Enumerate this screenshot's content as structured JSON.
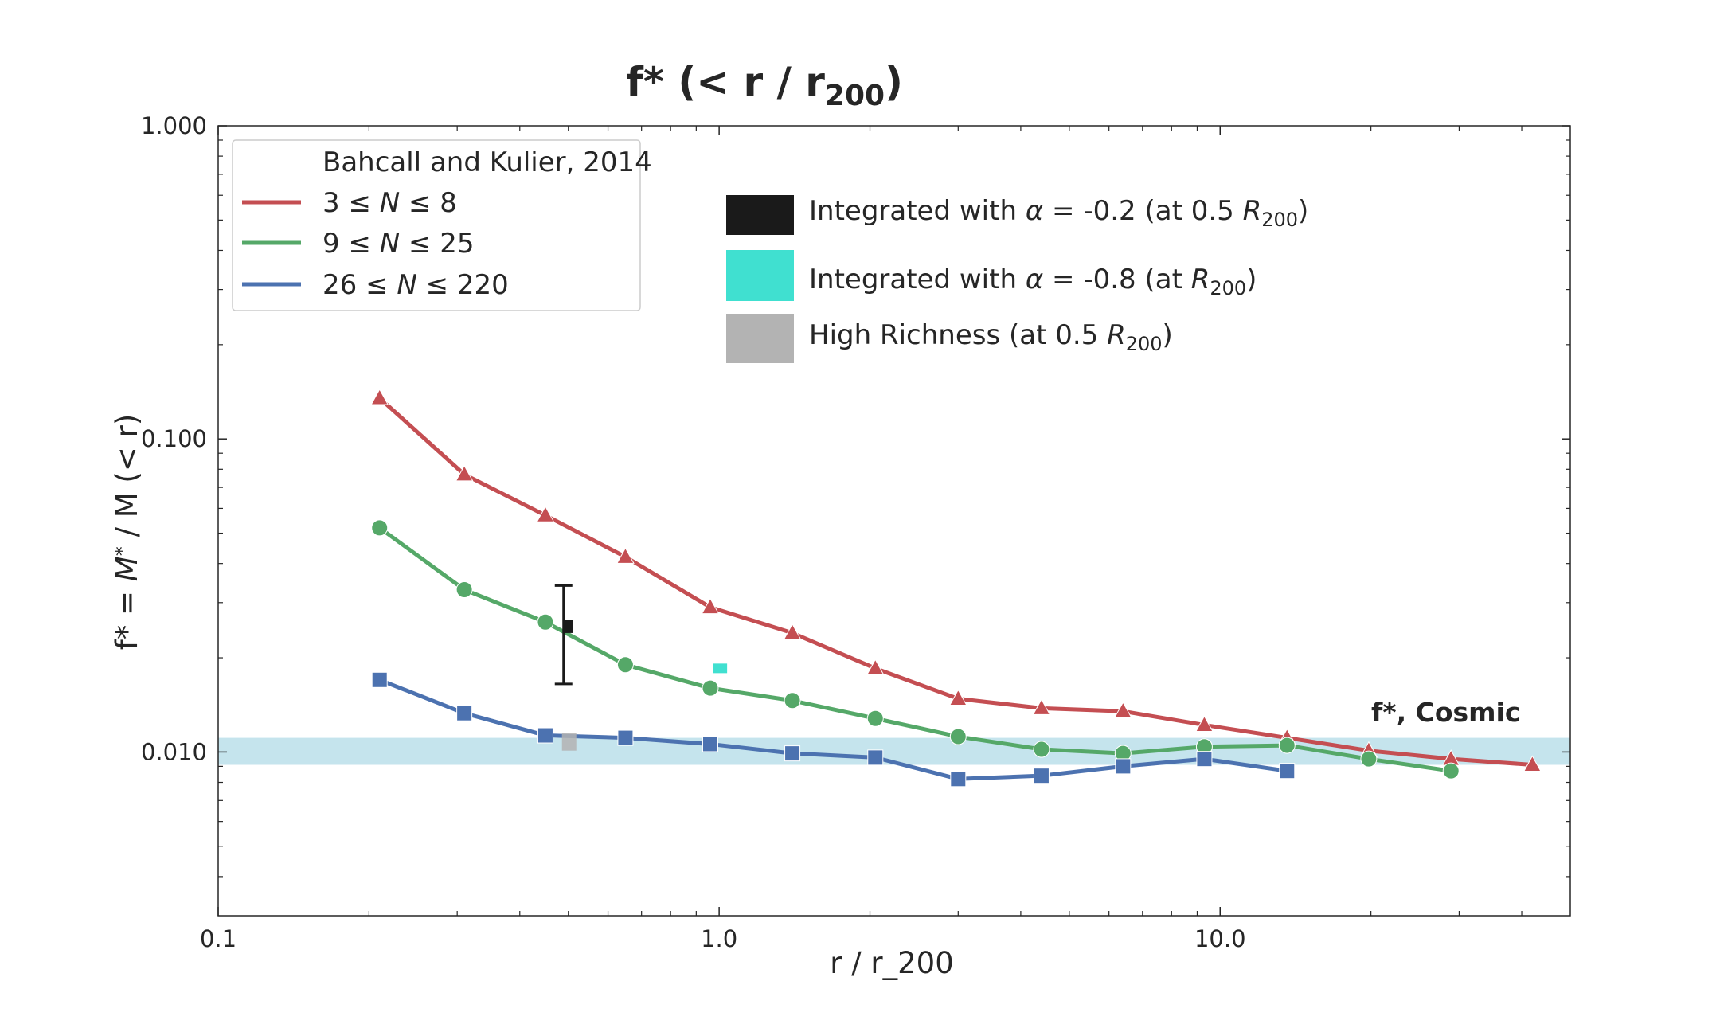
{
  "chart_data": {
    "type": "line",
    "title": "f* (< r / r200)",
    "title_parts": {
      "main": "f*  (< r / r",
      "sub": "200",
      "close": ")"
    },
    "xlabel": "r / r_200",
    "ylabel_parts": {
      "a": "f* = ",
      "b": "M",
      "c": "*",
      "d": " / M (< r)"
    },
    "x_scale": "log",
    "y_scale": "log",
    "xlim": [
      0.1,
      50
    ],
    "ylim": [
      0.003,
      1.0
    ],
    "x_ticks": [
      "0.1",
      "1.0",
      "10.0"
    ],
    "y_ticks": [
      "0.010",
      "0.100",
      "1.000"
    ],
    "grid": false,
    "legend": {
      "title": "Bahcall and Kulier, 2014",
      "placement": "top-left",
      "entries": [
        {
          "pre": "3 ≤ ",
          "var": "N",
          "post": " ≤ 8"
        },
        {
          "pre": "9 ≤ ",
          "var": "N",
          "post": " ≤ 25"
        },
        {
          "pre": "26 ≤ ",
          "var": "N",
          "post": " ≤ 220"
        }
      ]
    },
    "series": [
      {
        "name": "3 ≤ N ≤ 8",
        "color": "#c44e52",
        "marker": "triangle",
        "x": [
          0.21,
          0.31,
          0.45,
          0.65,
          0.96,
          1.4,
          2.05,
          3.0,
          4.4,
          6.4,
          9.3,
          13.6,
          19.8,
          28.9,
          42.0
        ],
        "y": [
          0.135,
          0.077,
          0.057,
          0.042,
          0.029,
          0.024,
          0.0185,
          0.0148,
          0.0138,
          0.0135,
          0.0122,
          0.0111,
          0.0101,
          0.0095,
          0.0091
        ]
      },
      {
        "name": "9 ≤ N ≤ 25",
        "color": "#55a868",
        "marker": "circle",
        "x": [
          0.21,
          0.31,
          0.45,
          0.65,
          0.96,
          1.4,
          2.05,
          3.0,
          4.4,
          6.4,
          9.3,
          13.6,
          19.8,
          28.9
        ],
        "y": [
          0.052,
          0.033,
          0.026,
          0.019,
          0.016,
          0.0146,
          0.0128,
          0.0112,
          0.0102,
          0.0099,
          0.0104,
          0.0105,
          0.0095,
          0.0087
        ]
      },
      {
        "name": "26 ≤ N ≤ 220",
        "color": "#4c72b0",
        "marker": "square",
        "x": [
          0.21,
          0.31,
          0.45,
          0.65,
          0.96,
          1.4,
          2.05,
          3.0,
          4.4,
          6.4,
          9.3,
          13.6
        ],
        "y": [
          0.017,
          0.0133,
          0.0113,
          0.0111,
          0.0106,
          0.0099,
          0.0096,
          0.0082,
          0.0084,
          0.009,
          0.0095,
          0.0087
        ]
      }
    ],
    "points": [
      {
        "label_pre": "Integrated with ",
        "label_var": "α",
        "label_mid": " = -0.2 (at 0.5 ",
        "label_r": "R",
        "label_sub": "200",
        "label_post": ")",
        "color": "#1a1a1a",
        "x": 0.5,
        "y": 0.025,
        "yerr": [
          0.0165,
          0.034
        ]
      },
      {
        "label_pre": "Integrated with ",
        "label_var": "α",
        "label_mid": " = -0.8 (at ",
        "label_r": "R",
        "label_sub": "200",
        "label_post": ")",
        "color": "#40e0d0",
        "x": 1.0,
        "y": 0.0185
      },
      {
        "label_pre": "High Richness (at 0.5 ",
        "label_var": "",
        "label_mid": "",
        "label_r": "R",
        "label_sub": "200",
        "label_post": ")",
        "color": "#b3b3b3",
        "x": 0.5,
        "y": 0.0107,
        "yrange": [
          0.0101,
          0.0115
        ]
      }
    ],
    "band": {
      "label": "f*, Cosmic",
      "y_range": [
        0.0091,
        0.0111
      ],
      "color": "#add8e6"
    }
  }
}
